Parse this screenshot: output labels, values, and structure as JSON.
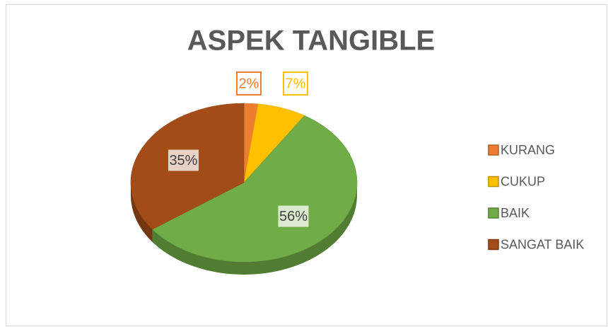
{
  "chart_data": {
    "type": "pie",
    "title": "ASPEK TANGIBLE",
    "categories": [
      "KURANG",
      "CUKUP",
      "BAIK",
      "SANGAT BAIK"
    ],
    "values": [
      2,
      7,
      56,
      35
    ],
    "value_labels": [
      "2%",
      "7%",
      "56%",
      "35%"
    ],
    "colors": [
      "#ED7D31",
      "#FFC000",
      "#70AD47",
      "#A34C18"
    ],
    "legend": "right",
    "style": "3d"
  }
}
